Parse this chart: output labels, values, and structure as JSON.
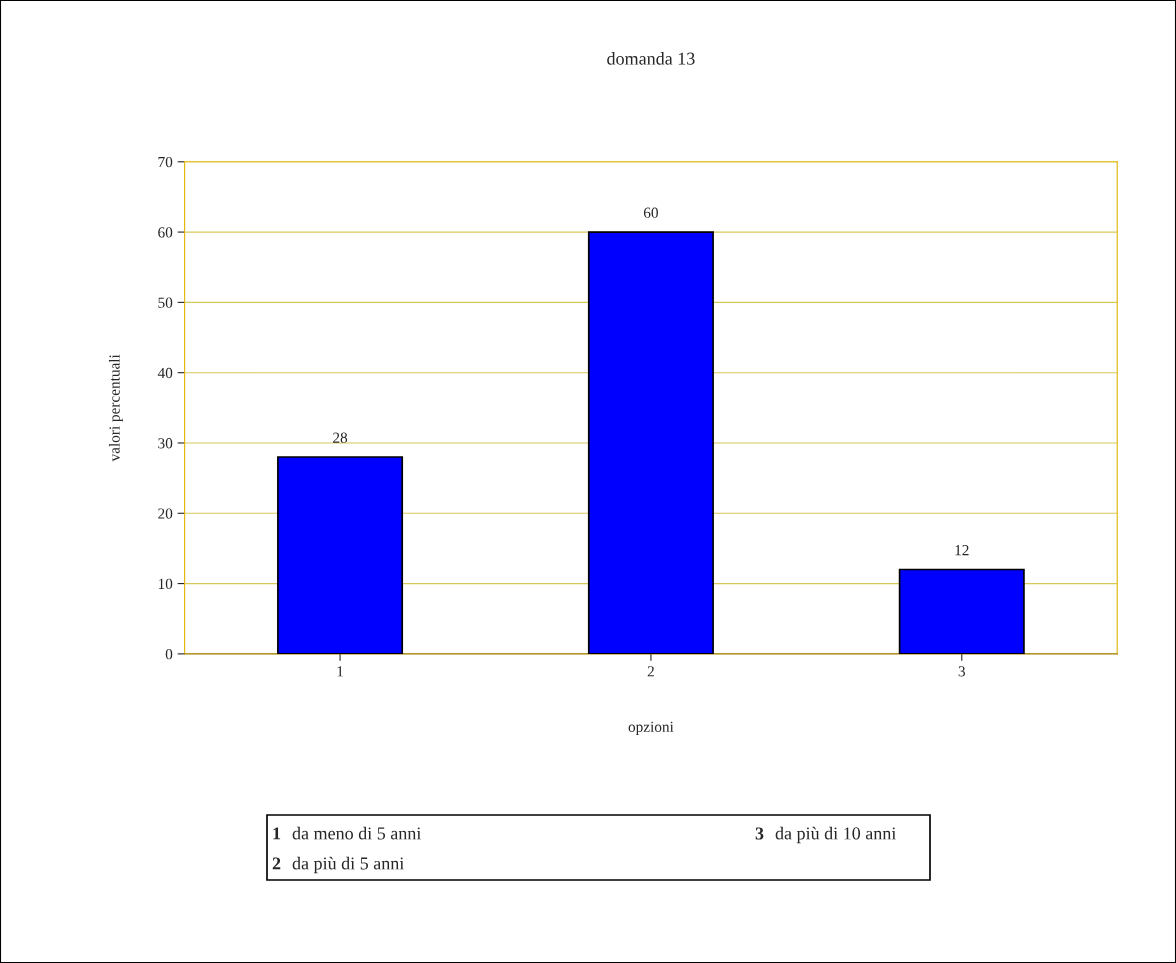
{
  "chart_data": {
    "type": "bar",
    "title": "domanda 13",
    "xlabel": "opzioni",
    "ylabel": "valori percentuali",
    "categories": [
      "1",
      "2",
      "3"
    ],
    "values": [
      28,
      60,
      12
    ],
    "color": "#0000ff",
    "ylim": [
      0,
      70
    ],
    "yticks": [
      0,
      10,
      20,
      30,
      40,
      50,
      60,
      70
    ],
    "grid": "y",
    "data_labels": true,
    "annotations": [
      "1 da meno di 5 anni",
      "2 da più di 5 anni",
      "3 da più di 10 anni"
    ]
  }
}
